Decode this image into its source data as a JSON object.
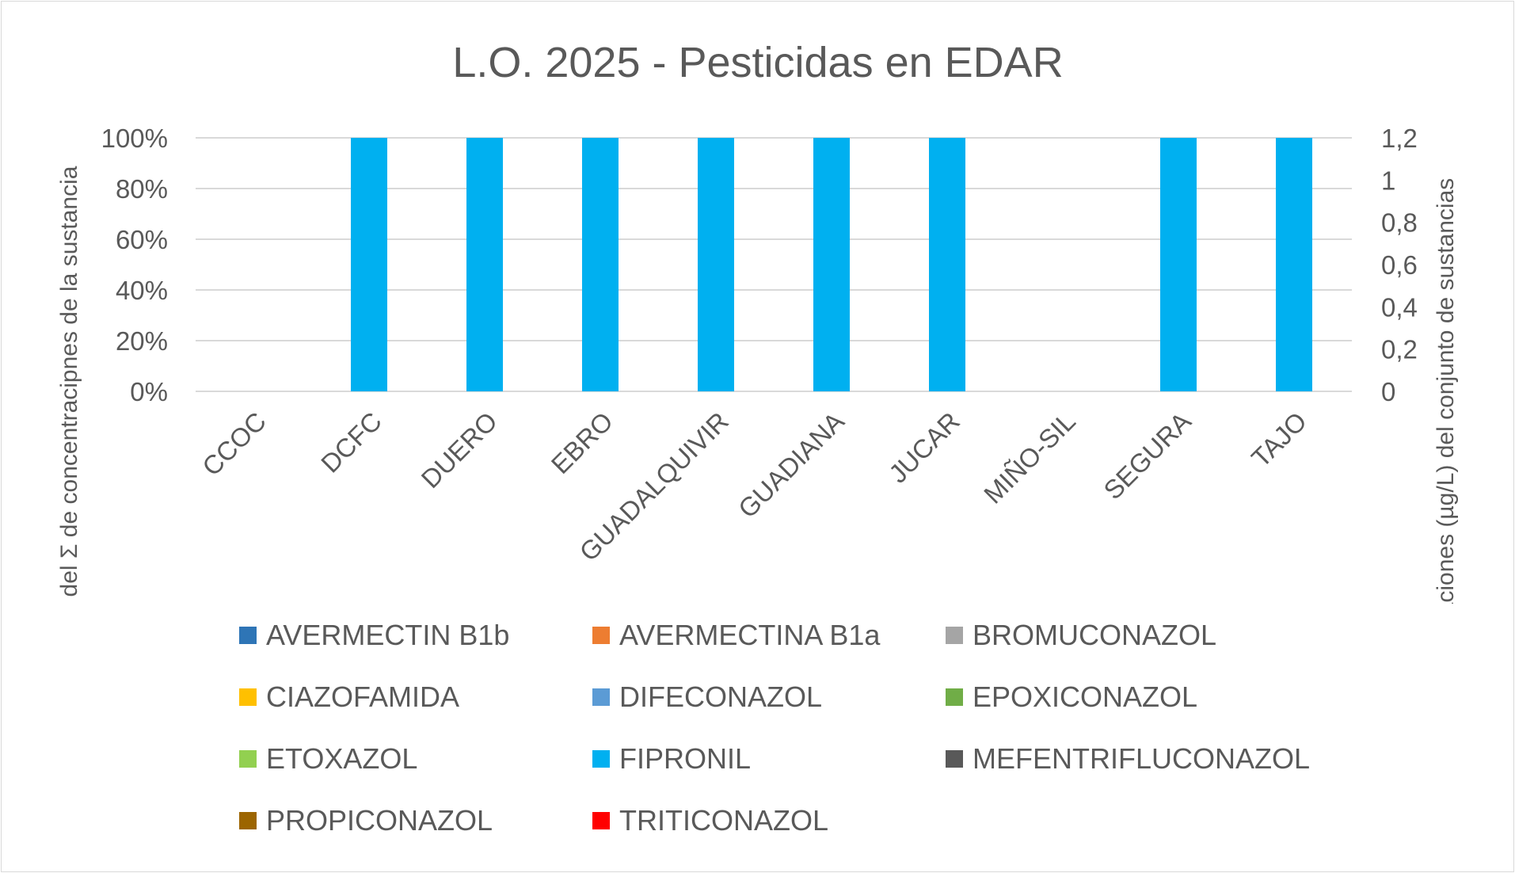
{
  "chart_data": {
    "type": "bar",
    "title": "L.O. 2025 - Pesticidas en EDAR",
    "ylabel": "% del Σ de concentracipnes de la sustancia",
    "y2label": "Σ concentraciones (µg/L) del conjunto de sustancias",
    "yticks": [
      "0%",
      "20%",
      "40%",
      "60%",
      "80%",
      "100%"
    ],
    "y2ticks": [
      "0",
      "0,2",
      "0,4",
      "0,6",
      "0,8",
      "1",
      "1,2"
    ],
    "ylim": [
      0,
      100
    ],
    "y2lim": [
      0,
      1.2
    ],
    "grid": true,
    "legend_position": "bottom",
    "categories": [
      "CCOC",
      "DCFC",
      "DUERO",
      "EBRO",
      "GUADALQUIVIR",
      "GUADIANA",
      "JUCAR",
      "MIÑO-SIL",
      "SEGURA",
      "TAJO"
    ],
    "series": [
      {
        "name": "AVERMECTIN B1b",
        "color": "#2e75b6",
        "values": [
          0,
          0,
          0,
          0,
          0,
          0,
          0,
          0,
          0,
          0
        ]
      },
      {
        "name": "AVERMECTINA B1a",
        "color": "#ed7d31",
        "values": [
          0,
          0,
          0,
          0,
          0,
          0,
          0,
          0,
          0,
          0
        ]
      },
      {
        "name": "BROMUCONAZOL",
        "color": "#a5a5a5",
        "values": [
          0,
          0,
          0,
          0,
          0,
          0,
          0,
          0,
          0,
          0
        ]
      },
      {
        "name": "CIAZOFAMIDA",
        "color": "#ffc000",
        "values": [
          0,
          0,
          0,
          0,
          0,
          0,
          0,
          0,
          0,
          0
        ]
      },
      {
        "name": "DIFECONAZOL",
        "color": "#5b9bd5",
        "values": [
          0,
          0,
          0,
          0,
          0,
          0,
          0,
          0,
          0,
          0
        ]
      },
      {
        "name": "EPOXICONAZOL",
        "color": "#70ad47",
        "values": [
          0,
          0,
          0,
          0,
          0,
          0,
          0,
          0,
          0,
          0
        ]
      },
      {
        "name": "ETOXAZOL",
        "color": "#92d050",
        "values": [
          0,
          0,
          0,
          0,
          0,
          0,
          0,
          0,
          0,
          0
        ]
      },
      {
        "name": "FIPRONIL",
        "color": "#00b0f0",
        "values": [
          0,
          100,
          100,
          100,
          100,
          100,
          100,
          0,
          100,
          100
        ]
      },
      {
        "name": "MEFENTRIFLUCONAZOL",
        "color": "#595959",
        "values": [
          0,
          0,
          0,
          0,
          0,
          0,
          0,
          0,
          0,
          0
        ]
      },
      {
        "name": "PROPICONAZOL",
        "color": "#9c6500",
        "values": [
          0,
          0,
          0,
          0,
          0,
          0,
          0,
          0,
          0,
          0
        ]
      },
      {
        "name": "TRITICONAZOL",
        "color": "#ff0000",
        "values": [
          0,
          0,
          0,
          0,
          0,
          0,
          0,
          0,
          0,
          0
        ]
      }
    ]
  }
}
